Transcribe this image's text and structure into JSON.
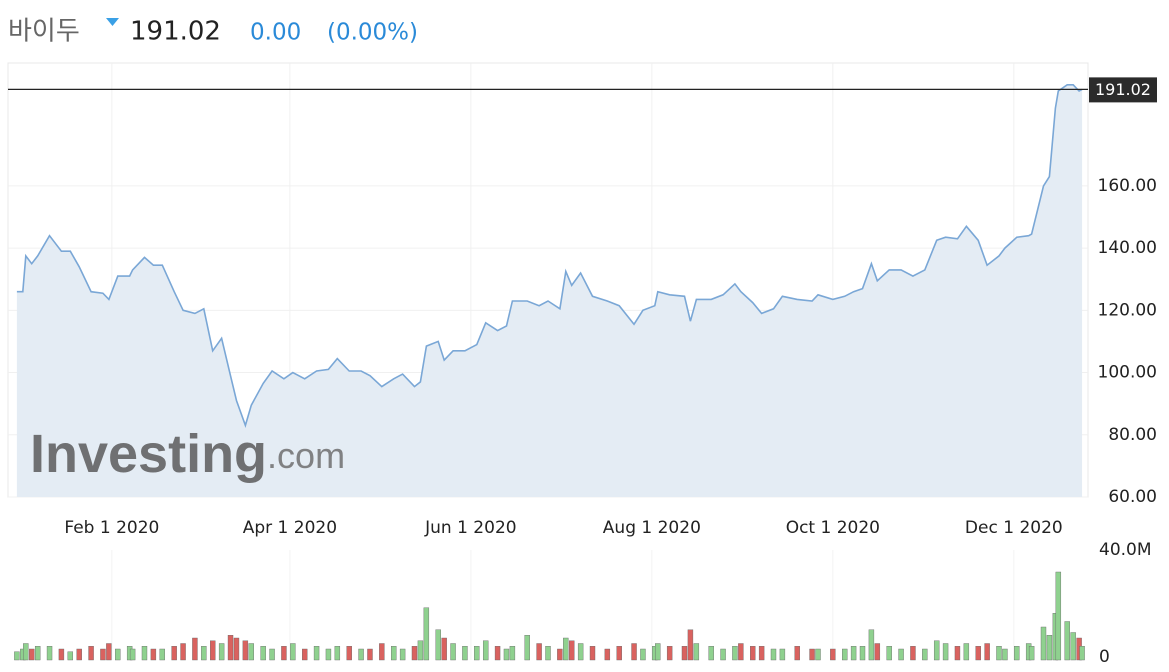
{
  "header": {
    "name": "바이두",
    "price": "191.02",
    "change": "0.00",
    "change_pct": "(0.00%)"
  },
  "chart_data": [
    {
      "type": "area",
      "color": "#7aa7d6",
      "fill": "#e4ecf4",
      "grid": true,
      "watermark": {
        "brand": "Investing",
        "suffix": ".com"
      },
      "last_value": 191.02,
      "xlim": [
        "2019-12-28",
        "2020-12-26"
      ],
      "xticks": [
        {
          "value": "2020-02-01",
          "label": "Feb 1 2020"
        },
        {
          "value": "2020-04-01",
          "label": "Apr 1 2020"
        },
        {
          "value": "2020-06-01",
          "label": "Jun 1 2020"
        },
        {
          "value": "2020-08-01",
          "label": "Aug 1 2020"
        },
        {
          "value": "2020-10-01",
          "label": "Oct 1 2020"
        },
        {
          "value": "2020-12-01",
          "label": "Dec 1 2020"
        }
      ],
      "ylim": [
        60,
        199.5
      ],
      "yticks": [
        {
          "value": 60,
          "label": "60.00"
        },
        {
          "value": 80,
          "label": "80.00"
        },
        {
          "value": 100,
          "label": "100.00"
        },
        {
          "value": 120,
          "label": "120.00"
        },
        {
          "value": 140,
          "label": "140.00"
        },
        {
          "value": 160,
          "label": "160.00"
        }
      ],
      "x": [
        "2019-12-31",
        "2020-01-02",
        "2020-01-03",
        "2020-01-05",
        "2020-01-07",
        "2020-01-11",
        "2020-01-15",
        "2020-01-18",
        "2020-01-21",
        "2020-01-25",
        "2020-01-29",
        "2020-01-31",
        "2020-02-03",
        "2020-02-07",
        "2020-02-08",
        "2020-02-12",
        "2020-02-15",
        "2020-02-18",
        "2020-02-22",
        "2020-02-25",
        "2020-02-29",
        "2020-03-03",
        "2020-03-06",
        "2020-03-09",
        "2020-03-12",
        "2020-03-14",
        "2020-03-17",
        "2020-03-19",
        "2020-03-23",
        "2020-03-26",
        "2020-03-30",
        "2020-04-02",
        "2020-04-06",
        "2020-04-10",
        "2020-04-14",
        "2020-04-17",
        "2020-04-21",
        "2020-04-25",
        "2020-04-28",
        "2020-05-02",
        "2020-05-06",
        "2020-05-09",
        "2020-05-13",
        "2020-05-15",
        "2020-05-17",
        "2020-05-21",
        "2020-05-23",
        "2020-05-26",
        "2020-05-30",
        "2020-06-03",
        "2020-06-06",
        "2020-06-10",
        "2020-06-13",
        "2020-06-15",
        "2020-06-20",
        "2020-06-24",
        "2020-06-27",
        "2020-07-01",
        "2020-07-03",
        "2020-07-05",
        "2020-07-08",
        "2020-07-12",
        "2020-07-17",
        "2020-07-21",
        "2020-07-26",
        "2020-07-29",
        "2020-08-02",
        "2020-08-03",
        "2020-08-07",
        "2020-08-12",
        "2020-08-14",
        "2020-08-16",
        "2020-08-21",
        "2020-08-25",
        "2020-08-29",
        "2020-08-31",
        "2020-09-04",
        "2020-09-07",
        "2020-09-11",
        "2020-09-14",
        "2020-09-19",
        "2020-09-24",
        "2020-09-26",
        "2020-10-01",
        "2020-10-05",
        "2020-10-08",
        "2020-10-11",
        "2020-10-14",
        "2020-10-16",
        "2020-10-20",
        "2020-10-24",
        "2020-10-28",
        "2020-11-01",
        "2020-11-05",
        "2020-11-08",
        "2020-11-12",
        "2020-11-15",
        "2020-11-19",
        "2020-11-22",
        "2020-11-26",
        "2020-11-28",
        "2020-12-02",
        "2020-12-06",
        "2020-12-07",
        "2020-12-11",
        "2020-12-13",
        "2020-12-15",
        "2020-12-16",
        "2020-12-19",
        "2020-12-21",
        "2020-12-23",
        "2020-12-24"
      ],
      "values": [
        126,
        126,
        137.5,
        135,
        137.5,
        144,
        139,
        139,
        134,
        126,
        125.5,
        123.5,
        131,
        131,
        133,
        137,
        134.5,
        134.5,
        126,
        120,
        119,
        120.5,
        107,
        111,
        99,
        91,
        83,
        89.5,
        96.5,
        100.5,
        98,
        100,
        98,
        100.5,
        101,
        104.5,
        100.5,
        100.5,
        99,
        95.5,
        98,
        99.5,
        95.5,
        97,
        108.5,
        110,
        104,
        107,
        107,
        109,
        116,
        113.5,
        115,
        123,
        123,
        121.5,
        123,
        120.5,
        132.5,
        128,
        132,
        124.5,
        123,
        121.5,
        115.5,
        120,
        121.5,
        126,
        125,
        124.5,
        116.5,
        123.5,
        123.5,
        125,
        128.5,
        126,
        122.5,
        119,
        120.5,
        124.5,
        123.5,
        123,
        125,
        123.5,
        124.5,
        126,
        127,
        135,
        129.5,
        133,
        133,
        131,
        133,
        142.5,
        143.5,
        143,
        147,
        142.5,
        134.5,
        137.5,
        140,
        143.5,
        144,
        144.5,
        160,
        163,
        185,
        190.5,
        192.5,
        192.5,
        190.5,
        191.02
      ]
    },
    {
      "type": "bar",
      "up_color": "#8fd18f",
      "down_color": "#d9625f",
      "xlim": [
        "2019-12-28",
        "2020-12-26"
      ],
      "ylim": [
        0,
        40
      ],
      "yticks": [
        0,
        {
          "value": 40,
          "label": "40.0M"
        }
      ],
      "x": [
        "2019-12-31",
        "2020-01-02",
        "2020-01-03",
        "2020-01-05",
        "2020-01-07",
        "2020-01-11",
        "2020-01-15",
        "2020-01-18",
        "2020-01-21",
        "2020-01-25",
        "2020-01-29",
        "2020-01-31",
        "2020-02-03",
        "2020-02-07",
        "2020-02-08",
        "2020-02-12",
        "2020-02-15",
        "2020-02-18",
        "2020-02-22",
        "2020-02-25",
        "2020-02-29",
        "2020-03-03",
        "2020-03-06",
        "2020-03-09",
        "2020-03-12",
        "2020-03-14",
        "2020-03-17",
        "2020-03-19",
        "2020-03-23",
        "2020-03-26",
        "2020-03-30",
        "2020-04-02",
        "2020-04-06",
        "2020-04-10",
        "2020-04-14",
        "2020-04-17",
        "2020-04-21",
        "2020-04-25",
        "2020-04-28",
        "2020-05-02",
        "2020-05-06",
        "2020-05-09",
        "2020-05-13",
        "2020-05-15",
        "2020-05-17",
        "2020-05-21",
        "2020-05-23",
        "2020-05-26",
        "2020-05-30",
        "2020-06-03",
        "2020-06-06",
        "2020-06-10",
        "2020-06-13",
        "2020-06-15",
        "2020-06-20",
        "2020-06-24",
        "2020-06-27",
        "2020-07-01",
        "2020-07-03",
        "2020-07-05",
        "2020-07-08",
        "2020-07-12",
        "2020-07-17",
        "2020-07-21",
        "2020-07-26",
        "2020-07-29",
        "2020-08-02",
        "2020-08-03",
        "2020-08-07",
        "2020-08-12",
        "2020-08-14",
        "2020-08-16",
        "2020-08-21",
        "2020-08-25",
        "2020-08-29",
        "2020-08-31",
        "2020-09-04",
        "2020-09-07",
        "2020-09-11",
        "2020-09-14",
        "2020-09-19",
        "2020-09-24",
        "2020-09-26",
        "2020-10-01",
        "2020-10-05",
        "2020-10-08",
        "2020-10-11",
        "2020-10-14",
        "2020-10-16",
        "2020-10-20",
        "2020-10-24",
        "2020-10-28",
        "2020-11-01",
        "2020-11-05",
        "2020-11-08",
        "2020-11-12",
        "2020-11-15",
        "2020-11-19",
        "2020-11-22",
        "2020-11-26",
        "2020-11-28",
        "2020-12-02",
        "2020-12-06",
        "2020-12-07",
        "2020-12-11",
        "2020-12-13",
        "2020-12-15",
        "2020-12-16",
        "2020-12-19",
        "2020-12-21",
        "2020-12-23",
        "2020-12-24"
      ],
      "values": [
        3,
        4,
        6,
        4,
        5,
        5,
        4,
        3,
        4,
        5,
        4,
        6,
        4,
        5,
        4,
        5,
        4,
        4,
        5,
        6,
        8,
        5,
        7,
        6,
        9,
        8,
        7,
        6,
        5,
        4,
        5,
        6,
        4,
        5,
        4,
        5,
        5,
        4,
        4,
        6,
        5,
        4,
        5,
        7,
        19,
        11,
        8,
        6,
        5,
        5,
        7,
        5,
        4,
        5,
        9,
        6,
        5,
        4,
        8,
        7,
        6,
        5,
        4,
        5,
        6,
        4,
        5,
        6,
        5,
        5,
        11,
        6,
        5,
        4,
        5,
        6,
        5,
        5,
        4,
        4,
        5,
        4,
        4,
        4,
        4,
        5,
        5,
        11,
        6,
        5,
        4,
        5,
        4,
        7,
        6,
        5,
        6,
        5,
        6,
        5,
        4,
        5,
        6,
        5,
        12,
        9,
        17,
        32,
        14,
        10,
        8,
        5
      ]
    }
  ]
}
